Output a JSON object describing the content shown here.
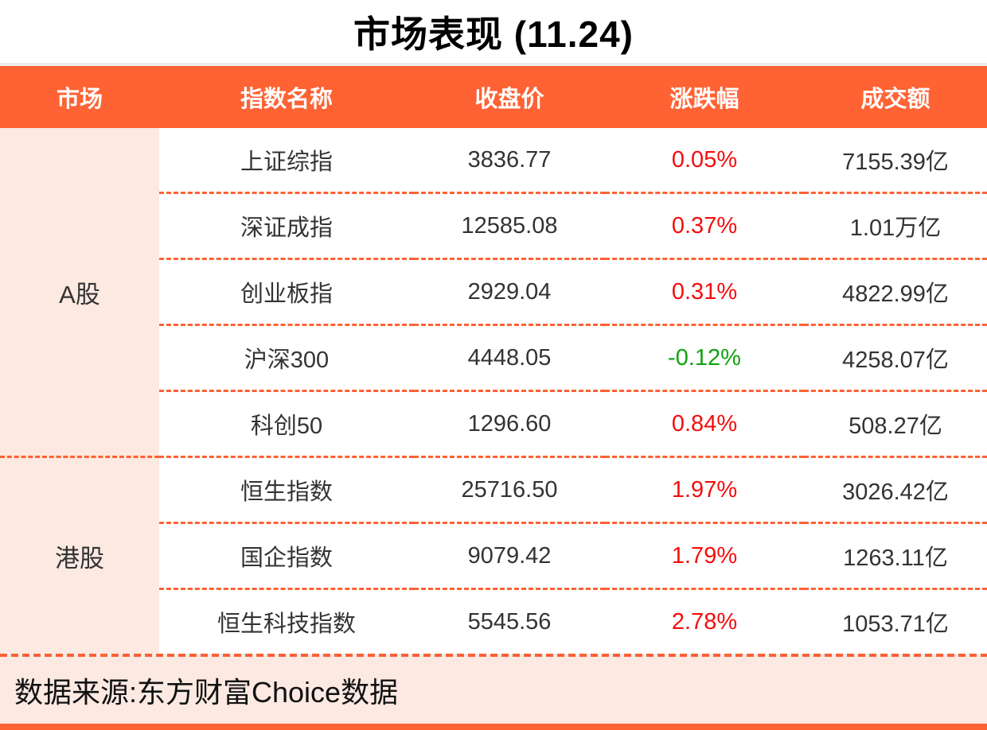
{
  "title": "市场表现 (11.24)",
  "footer": {
    "source": "数据来源:东方财富Choice数据"
  },
  "colors": {
    "orange": "#FF6233",
    "pink": "#FCE9E2",
    "red": "#F40D0D",
    "green": "#0FA30F",
    "text": "#333333",
    "grayline": "#ECECEE"
  },
  "chart_data": {
    "type": "table",
    "title": "市场表现 (11.24)",
    "columns": [
      "市场",
      "指数名称",
      "收盘价",
      "涨跌幅",
      "成交额"
    ],
    "groups": [
      {
        "market": "A股",
        "rows": [
          {
            "name": "上证综指",
            "close": "3836.77",
            "change": "0.05%",
            "direction": "up",
            "turnover": "7155.39亿"
          },
          {
            "name": "深证成指",
            "close": "12585.08",
            "change": "0.37%",
            "direction": "up",
            "turnover": "1.01万亿"
          },
          {
            "name": "创业板指",
            "close": "2929.04",
            "change": "0.31%",
            "direction": "up",
            "turnover": "4822.99亿"
          },
          {
            "name": "沪深300",
            "close": "4448.05",
            "change": "-0.12%",
            "direction": "down",
            "turnover": "4258.07亿"
          },
          {
            "name": "科创50",
            "close": "1296.60",
            "change": "0.84%",
            "direction": "up",
            "turnover": "508.27亿"
          }
        ]
      },
      {
        "market": "港股",
        "rows": [
          {
            "name": "恒生指数",
            "close": "25716.50",
            "change": "1.97%",
            "direction": "up",
            "turnover": "3026.42亿"
          },
          {
            "name": "国企指数",
            "close": "9079.42",
            "change": "1.79%",
            "direction": "up",
            "turnover": "1263.11亿"
          },
          {
            "name": "恒生科技指数",
            "close": "5545.56",
            "change": "2.78%",
            "direction": "up",
            "turnover": "1053.71亿"
          }
        ]
      }
    ],
    "source": "数据来源:东方财富Choice数据"
  }
}
